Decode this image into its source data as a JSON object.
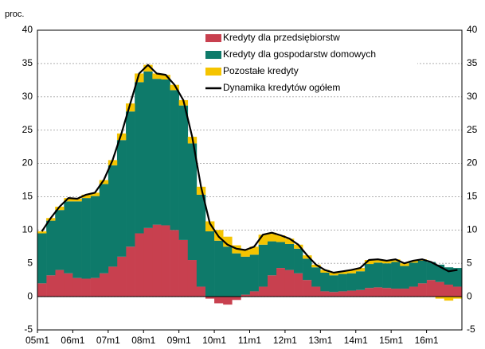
{
  "chart_data": {
    "type": "bar",
    "y_label": "proc.",
    "categories": [
      "05m1",
      null,
      null,
      null,
      "06m1",
      null,
      null,
      null,
      "07m1",
      null,
      null,
      null,
      "08m1",
      null,
      null,
      null,
      "09m1",
      null,
      null,
      null,
      "10m1",
      null,
      null,
      null,
      "11m1",
      null,
      null,
      null,
      "12m1",
      null,
      null,
      null,
      "13m1",
      null,
      null,
      null,
      "14m1",
      null,
      null,
      null,
      "15m1",
      null,
      null,
      null,
      "16m1",
      null,
      null,
      null
    ],
    "series": [
      {
        "name": "Kredyty dla przedsiębiorstw",
        "type": "bar",
        "color": "#c8404f",
        "values": [
          2,
          3.2,
          4,
          3.5,
          2.8,
          2.7,
          2.8,
          3.5,
          4.5,
          6,
          7.5,
          9.5,
          10.3,
          10.8,
          10.7,
          10,
          8.5,
          5.5,
          1.5,
          -0.3,
          -1,
          -1.2,
          -0.5,
          0.3,
          0.8,
          1.5,
          3.2,
          4.3,
          4,
          3.5,
          2.5,
          1.5,
          0.8,
          0.7,
          0.8,
          0.9,
          1,
          1.3,
          1.4,
          1.3,
          1.2,
          1.2,
          1.5,
          2,
          2.5,
          2.2,
          1.8,
          1.5
        ]
      },
      {
        "name": "Kredyty dla gospodarstw domowych",
        "type": "bar",
        "color": "#0e7a6a",
        "values": [
          7.5,
          8.2,
          9,
          10.8,
          11.5,
          12.1,
          12.3,
          13.4,
          15.2,
          17.5,
          20.3,
          22.7,
          23.5,
          21.9,
          21.9,
          21,
          20.2,
          17.5,
          13.8,
          9.8,
          8.4,
          7.5,
          6.5,
          5.7,
          5.5,
          6.3,
          5.1,
          3.9,
          3.9,
          3.7,
          3.2,
          2.9,
          2.8,
          2.5,
          2.6,
          2.6,
          2.8,
          3.6,
          3.7,
          3.7,
          4,
          3.4,
          3.6,
          3.4,
          2.7,
          2.6,
          2.6,
          2.8
        ]
      },
      {
        "name": "Pozostałe kredyty",
        "type": "bar",
        "color": "#f5c400",
        "values": [
          0.3,
          0.4,
          0.5,
          0.5,
          0.4,
          0.5,
          0.5,
          0.6,
          0.8,
          1,
          1.2,
          1.3,
          1,
          0.8,
          0.7,
          0.8,
          0.8,
          1,
          1.2,
          1.5,
          1.6,
          1.5,
          1.2,
          1,
          1.2,
          1.5,
          1.3,
          1,
          0.8,
          0.6,
          0.5,
          0.4,
          0.4,
          0.4,
          0.4,
          0.5,
          0.5,
          0.6,
          0.5,
          0.4,
          0.4,
          0.4,
          0.3,
          0.2,
          0,
          -0.3,
          -0.6,
          -0.3
        ]
      },
      {
        "name": "Dynamika kredytów ogółem",
        "type": "line",
        "color": "#000000",
        "values": [
          9.8,
          11.8,
          13.5,
          14.8,
          14.7,
          15.3,
          15.6,
          17.5,
          20.5,
          24.5,
          29,
          33.5,
          34.8,
          33.5,
          33.3,
          31.8,
          29.5,
          24,
          16.5,
          11,
          9,
          7.8,
          7.2,
          7,
          7.5,
          9.3,
          9.6,
          9.2,
          8.7,
          7.8,
          6.2,
          4.8,
          4,
          3.6,
          3.8,
          4,
          4.3,
          5.5,
          5.6,
          5.4,
          5.6,
          5,
          5.4,
          5.6,
          5.2,
          4.5,
          3.8,
          4
        ]
      }
    ],
    "ylim": [
      -5,
      40
    ],
    "yticks": [
      -5,
      0,
      5,
      10,
      15,
      20,
      25,
      30,
      35,
      40
    ],
    "grid": true,
    "legend": "top"
  }
}
